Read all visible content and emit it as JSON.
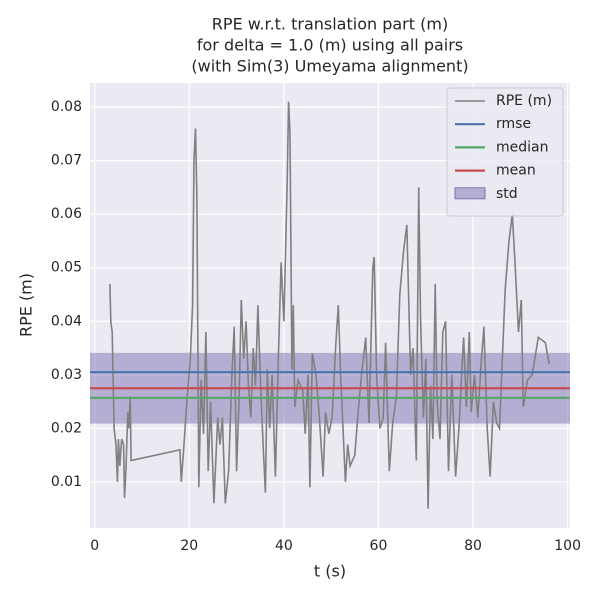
{
  "chart_data": {
    "type": "line",
    "title": [
      "RPE w.r.t. translation part (m)",
      "for delta = 1.0 (m) using all pairs",
      "(with Sim(3) Umeyama alignment)"
    ],
    "xlabel": "t (s)",
    "ylabel": "RPE (m)",
    "xlim": [
      -1.0,
      100.5
    ],
    "ylim": [
      0.0014,
      0.0845
    ],
    "xticks": [
      0,
      20,
      40,
      60,
      80,
      100
    ],
    "yticks": [
      0.01,
      0.02,
      0.03,
      0.04,
      0.05,
      0.06,
      0.07,
      0.08
    ],
    "grid": true,
    "legend": "upper right",
    "x": [
      3.2,
      3.4,
      3.7,
      4.1,
      4.5,
      4.8,
      5.0,
      5.3,
      5.7,
      6.1,
      6.3,
      6.6,
      7.0,
      7.2,
      7.5,
      7.7,
      18.0,
      18.3,
      18.8,
      19.5,
      20.2,
      20.7,
      21.0,
      21.3,
      21.6,
      22.0,
      22.5,
      23.0,
      23.5,
      24.0,
      24.5,
      25.2,
      26.0,
      26.5,
      27.0,
      27.6,
      28.3,
      29.0,
      29.5,
      30.0,
      30.5,
      31.0,
      31.5,
      32.0,
      32.5,
      33.0,
      33.5,
      34.0,
      34.5,
      35.0,
      35.6,
      36.1,
      36.5,
      37.0,
      37.5,
      38.2,
      38.8,
      39.4,
      40.0,
      40.7,
      41.0,
      41.3,
      41.7,
      42.0,
      42.3,
      43.0,
      44.0,
      44.5,
      45.1,
      45.5,
      46.0,
      46.8,
      47.5,
      48.3,
      48.8,
      49.5,
      50.2,
      51.0,
      51.5,
      52.0,
      53.0,
      53.5,
      54.0,
      55.0,
      55.6,
      56.3,
      57.3,
      58.0,
      58.8,
      59.1,
      59.6,
      60.3,
      61.0,
      61.5,
      62.3,
      63.0,
      63.8,
      64.5,
      65.3,
      66.0,
      66.8,
      67.3,
      68.0,
      68.5,
      68.9,
      69.5,
      70.0,
      70.5,
      71.0,
      71.5,
      72.0,
      72.4,
      73.0,
      73.6,
      74.2,
      74.8,
      75.5,
      76.3,
      77.0,
      78.0,
      78.6,
      79.2,
      79.6,
      80.3,
      81.0,
      81.7,
      82.3,
      83.0,
      83.6,
      84.3,
      85.0,
      85.6,
      86.3,
      86.8,
      87.6,
      88.3,
      88.8,
      89.6,
      90.2,
      90.6,
      91.5,
      92.5,
      93.8,
      95.3,
      96.1
    ],
    "series": [
      {
        "name": "RPE (m)",
        "color": "#808080",
        "values": [
          0.047,
          0.04,
          0.038,
          0.02,
          0.017,
          0.01,
          0.018,
          0.013,
          0.018,
          0.017,
          0.007,
          0.012,
          0.023,
          0.02,
          0.026,
          0.014,
          0.016,
          0.01,
          0.016,
          0.025,
          0.033,
          0.043,
          0.07,
          0.076,
          0.063,
          0.009,
          0.029,
          0.019,
          0.038,
          0.012,
          0.025,
          0.006,
          0.022,
          0.017,
          0.022,
          0.006,
          0.012,
          0.03,
          0.039,
          0.012,
          0.025,
          0.044,
          0.033,
          0.04,
          0.028,
          0.022,
          0.035,
          0.028,
          0.043,
          0.03,
          0.017,
          0.008,
          0.031,
          0.02,
          0.03,
          0.011,
          0.032,
          0.051,
          0.04,
          0.066,
          0.081,
          0.075,
          0.031,
          0.043,
          0.024,
          0.029,
          0.027,
          0.019,
          0.03,
          0.009,
          0.034,
          0.03,
          0.022,
          0.011,
          0.023,
          0.019,
          0.022,
          0.036,
          0.043,
          0.03,
          0.01,
          0.017,
          0.013,
          0.015,
          0.022,
          0.029,
          0.037,
          0.021,
          0.05,
          0.052,
          0.03,
          0.02,
          0.022,
          0.036,
          0.012,
          0.021,
          0.026,
          0.045,
          0.053,
          0.058,
          0.03,
          0.035,
          0.014,
          0.065,
          0.04,
          0.022,
          0.033,
          0.005,
          0.028,
          0.018,
          0.047,
          0.025,
          0.018,
          0.038,
          0.04,
          0.012,
          0.03,
          0.011,
          0.02,
          0.037,
          0.024,
          0.038,
          0.023,
          0.03,
          0.022,
          0.032,
          0.039,
          0.02,
          0.011,
          0.025,
          0.021,
          0.02,
          0.035,
          0.046,
          0.055,
          0.06,
          0.052,
          0.038,
          0.044,
          0.024,
          0.029,
          0.03,
          0.037,
          0.036,
          0.032
        ]
      }
    ],
    "hlines": [
      {
        "name": "rmse",
        "color": "#4c72b0",
        "value": 0.0305
      },
      {
        "name": "median",
        "color": "#55a868",
        "value": 0.0257
      },
      {
        "name": "mean",
        "color": "#c44e52",
        "value": 0.0275
      }
    ],
    "band": {
      "name": "std",
      "color": "#8172b2",
      "value": 0.0066
    }
  }
}
